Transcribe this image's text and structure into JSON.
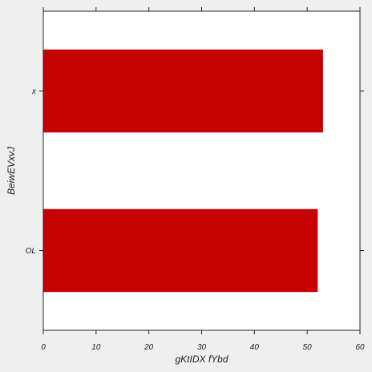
{
  "chart_data": {
    "type": "bar",
    "orientation": "horizontal",
    "categories": [
      "x",
      "OL"
    ],
    "values": [
      53,
      52
    ],
    "xlabel": "gKtIDX fYbd",
    "ylabel": "BeiwEVxvJ",
    "xlim": [
      0,
      60
    ],
    "xticks": [
      0,
      10,
      20,
      30,
      40,
      50,
      60
    ],
    "grid": false,
    "bar_color": "#c40000",
    "background": "#ffffff",
    "figure_background": "#f0efef"
  }
}
